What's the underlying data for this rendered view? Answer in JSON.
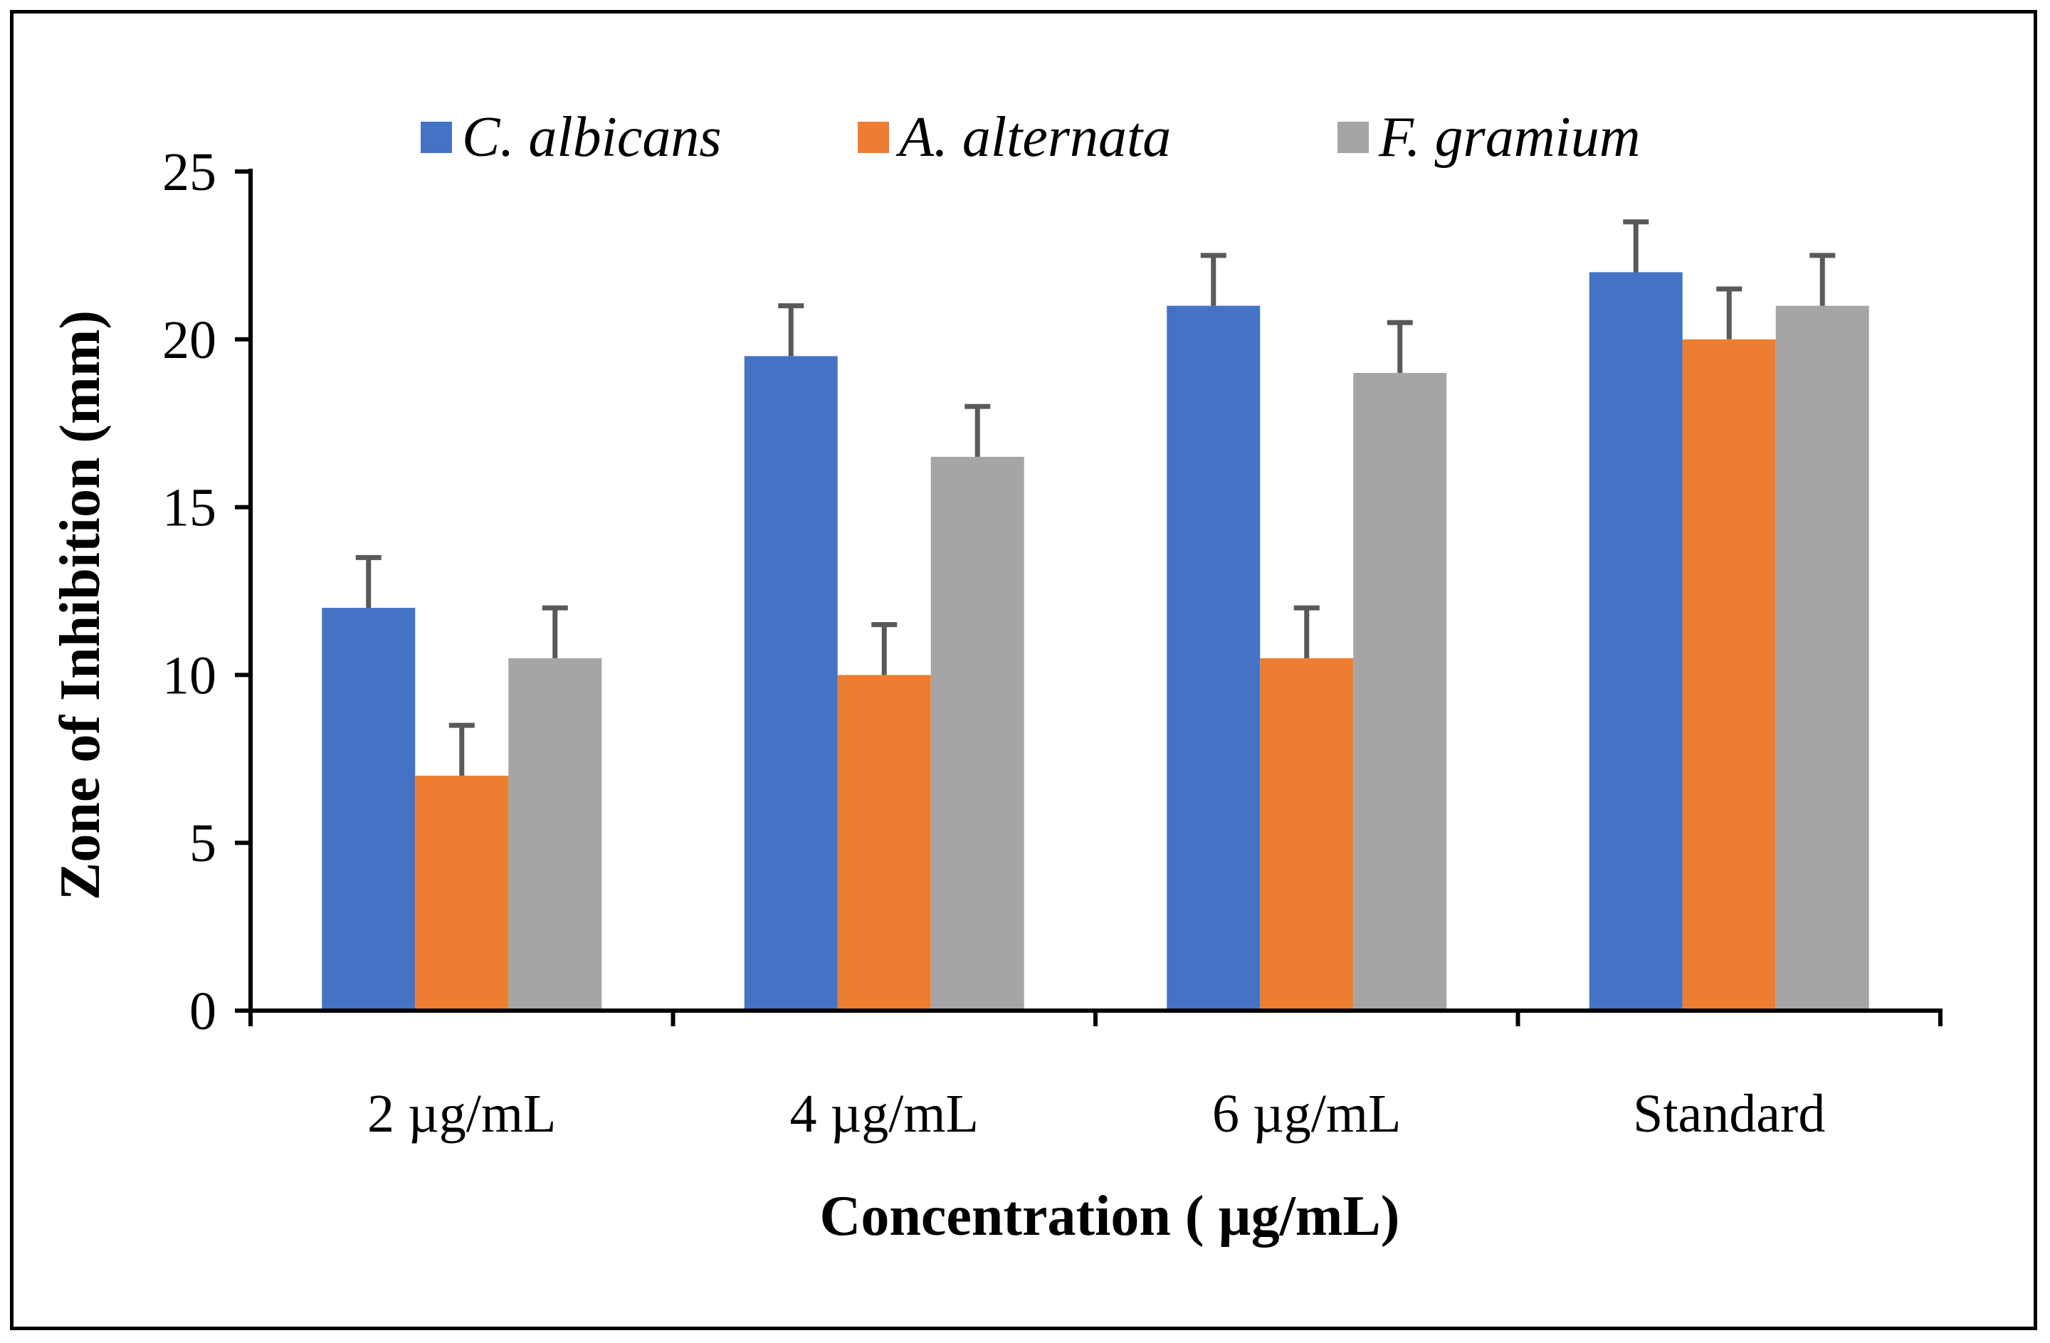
{
  "chart_data": {
    "type": "bar",
    "title": "",
    "xlabel": "Concentration ( µg/mL)",
    "ylabel": "Zone of Inhibition (mm)",
    "categories": [
      "2 µg/mL",
      "4 µg/mL",
      "6 µg/mL",
      "Standard"
    ],
    "ylim": [
      0,
      25
    ],
    "yticks": [
      0,
      5,
      10,
      15,
      20,
      25
    ],
    "grid": false,
    "legend_position": "top",
    "error_bars": true,
    "series": [
      {
        "name": "C. albicans",
        "color": "#4472C4",
        "values": [
          12,
          19.5,
          21,
          22
        ],
        "errors": [
          1.5,
          1.5,
          1.5,
          1.5
        ]
      },
      {
        "name": "A. alternata",
        "color": "#ED7D31",
        "values": [
          7,
          10,
          10.5,
          20
        ],
        "errors": [
          1.5,
          1.5,
          1.5,
          1.5
        ]
      },
      {
        "name": "F. gramium",
        "color": "#A5A5A5",
        "values": [
          10.5,
          16.5,
          19,
          21
        ],
        "errors": [
          1.5,
          1.5,
          1.5,
          1.5
        ]
      }
    ],
    "error_bar_color": "#595959"
  }
}
